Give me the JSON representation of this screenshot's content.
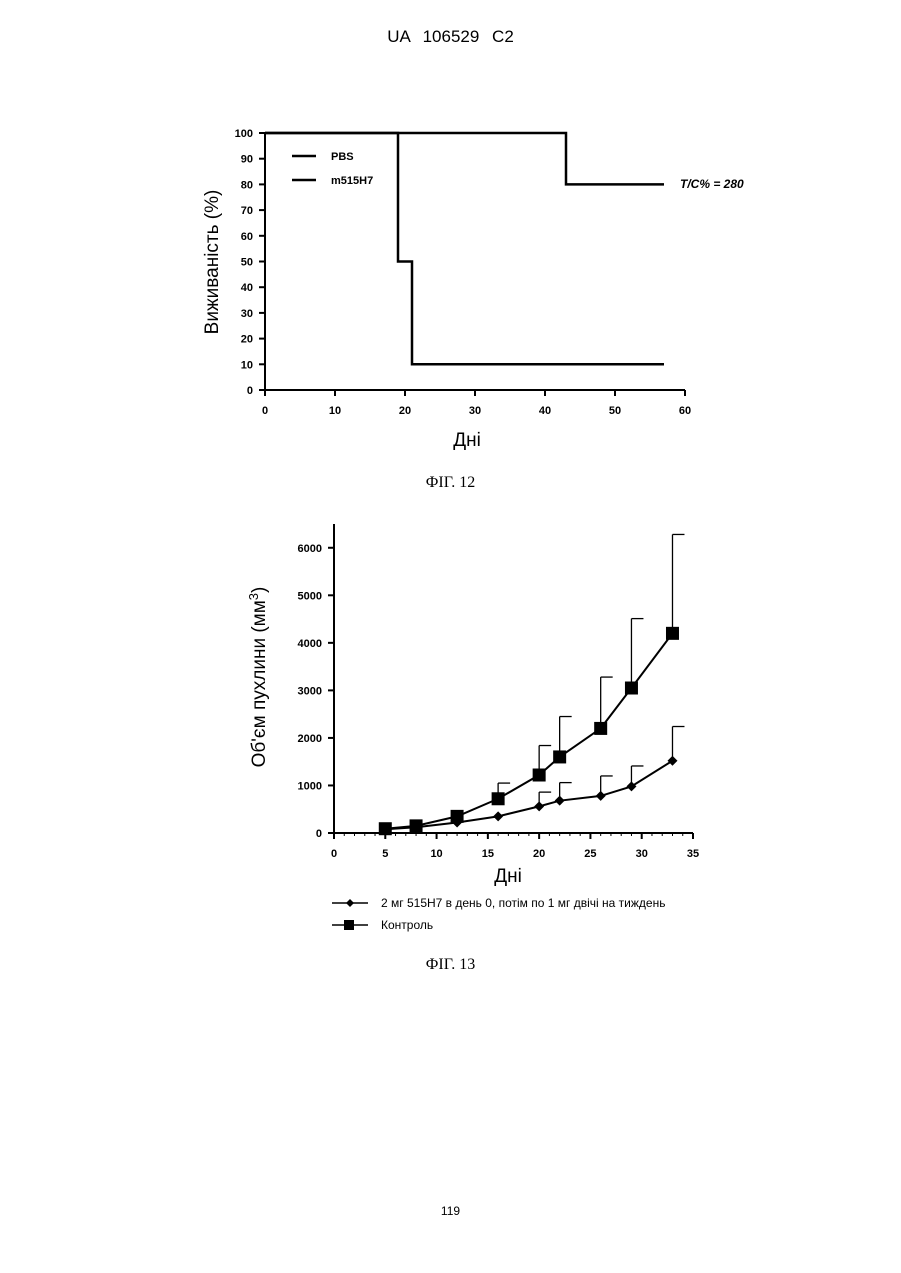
{
  "header": "UA 106529 C2",
  "page_number": "119",
  "captions": {
    "fig12": "ФІГ. 12",
    "fig13": "ФІГ. 13"
  },
  "chart_data": [
    {
      "type": "line",
      "style": "step",
      "xlabel": "Дні",
      "ylabel": "Виживаність (%)",
      "xlim": [
        0,
        60
      ],
      "ylim": [
        0,
        100
      ],
      "xticks": [
        0,
        10,
        20,
        30,
        40,
        50,
        60
      ],
      "yticks": [
        0,
        10,
        20,
        30,
        40,
        50,
        60,
        70,
        80,
        90,
        100
      ],
      "legend_position": "top-left",
      "annotation": "T/C% = 280",
      "series": [
        {
          "name": "PBS",
          "x": [
            0,
            19,
            19,
            21,
            21,
            57
          ],
          "y": [
            100,
            100,
            50,
            50,
            10,
            10
          ]
        },
        {
          "name": "m515H7",
          "x": [
            0,
            43,
            43,
            57
          ],
          "y": [
            100,
            100,
            80,
            80
          ]
        }
      ]
    },
    {
      "type": "line",
      "xlabel": "Дні",
      "ylabel": "Об'єм пухлини (мм³)",
      "ylabel_main": "Об'єм пухлини (мм",
      "ylabel_sup": "3",
      "ylabel_close": ")",
      "xlim": [
        0,
        35
      ],
      "ylim": [
        0,
        6500
      ],
      "xticks": [
        0,
        5,
        10,
        15,
        20,
        25,
        30,
        35
      ],
      "yticks": [
        0,
        1000,
        2000,
        3000,
        4000,
        5000,
        6000
      ],
      "legend_position": "bottom",
      "series": [
        {
          "name": "2 мг 515H7 в день 0, потім по 1 мг двічі на тиждень",
          "marker": "diamond",
          "x": [
            5,
            8,
            12,
            16,
            20,
            22,
            26,
            29,
            33
          ],
          "y": [
            80,
            120,
            220,
            350,
            560,
            680,
            780,
            980,
            1520
          ],
          "error": [
            0,
            0,
            0,
            0,
            300,
            380,
            420,
            430,
            720
          ]
        },
        {
          "name": "Контроль",
          "marker": "square",
          "x": [
            5,
            8,
            12,
            16,
            20,
            22,
            26,
            29,
            33
          ],
          "y": [
            90,
            150,
            350,
            720,
            1220,
            1600,
            2200,
            3050,
            4200
          ],
          "error": [
            0,
            0,
            0,
            330,
            620,
            850,
            1080,
            1460,
            2080
          ]
        }
      ]
    }
  ]
}
